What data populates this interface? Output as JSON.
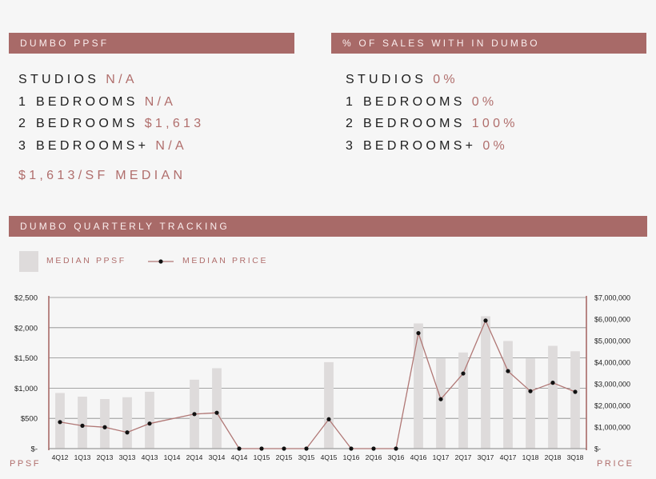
{
  "panels": {
    "ppsf_title": "DUMBO PPSF",
    "share_title": "% OF SALES WITH IN DUMBO",
    "tracking_title": "DUMBO QUARTERLY TRACKING"
  },
  "ppsf": [
    {
      "label": "STUDIOS",
      "value": "N/A"
    },
    {
      "label": "1 BEDROOMS",
      "value": "N/A"
    },
    {
      "label": "2 BEDROOMS",
      "value": "$1,613"
    },
    {
      "label": "3 BEDROOMS+",
      "value": "N/A"
    }
  ],
  "median_summary": "$1,613/SF MEDIAN",
  "share": [
    {
      "label": "STUDIOS",
      "value": "0%"
    },
    {
      "label": "1 BEDROOMS",
      "value": "0%"
    },
    {
      "label": "2 BEDROOMS",
      "value": "100%"
    },
    {
      "label": "3 BEDROOMS+",
      "value": "0%"
    }
  ],
  "legend": {
    "bar_label": "MEDIAN PPSF",
    "line_label": "MEDIAN PRICE"
  },
  "axis_side_labels": {
    "left": "PPSF",
    "right": "PRICE"
  },
  "colors": {
    "banner": "#a86a68",
    "accent_text": "#b06e6c",
    "bar": "#dedbdb",
    "line": "#b07775",
    "point": "#111111"
  },
  "chart_data": {
    "type": "bar",
    "categories": [
      "4Q12",
      "1Q13",
      "2Q13",
      "3Q13",
      "4Q13",
      "1Q14",
      "2Q14",
      "3Q14",
      "4Q14",
      "1Q15",
      "2Q15",
      "3Q15",
      "4Q15",
      "1Q16",
      "2Q16",
      "3Q16",
      "4Q16",
      "1Q17",
      "2Q17",
      "3Q17",
      "4Q17",
      "1Q18",
      "2Q18",
      "3Q18"
    ],
    "series": [
      {
        "name": "MEDIAN PPSF",
        "type": "bar",
        "axis": "left",
        "values": [
          920,
          860,
          820,
          850,
          940,
          0,
          1140,
          1330,
          0,
          0,
          0,
          0,
          1430,
          0,
          0,
          0,
          2070,
          1490,
          1590,
          2190,
          1780,
          1490,
          1700,
          1610
        ]
      },
      {
        "name": "MEDIAN PRICE",
        "type": "line",
        "axis": "right",
        "values": [
          1230000,
          1060000,
          990000,
          750000,
          1160000,
          null,
          1600000,
          1660000,
          0,
          0,
          0,
          0,
          1360000,
          0,
          0,
          0,
          5350000,
          2290000,
          3480000,
          5930000,
          3590000,
          2660000,
          3050000,
          2630000
        ]
      }
    ],
    "y_left": {
      "ylim": [
        0,
        2500
      ],
      "ticks": [
        0,
        500,
        1000,
        1500,
        2000,
        2500
      ],
      "tick_labels": [
        "$-",
        "$500",
        "$1,000",
        "$1,500",
        "$2,000",
        "$2,500"
      ]
    },
    "y_right": {
      "ylim": [
        0,
        7000000
      ],
      "ticks": [
        0,
        1000000,
        2000000,
        3000000,
        4000000,
        5000000,
        6000000,
        7000000
      ],
      "tick_labels": [
        "$-",
        "$1,000,000",
        "$2,000,000",
        "$3,000,000",
        "$4,000,000",
        "$5,000,000",
        "$6,000,000",
        "$7,000,000"
      ]
    },
    "grid": true,
    "legend_position": "top-left"
  }
}
